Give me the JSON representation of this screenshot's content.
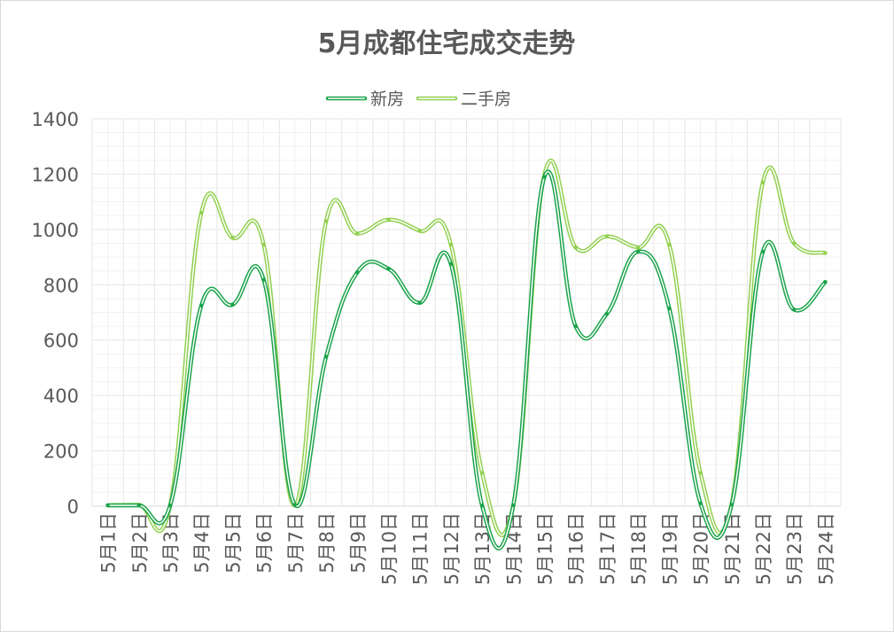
{
  "chart_data": {
    "type": "line",
    "title": "5月成都住宅成交走势",
    "xlabel": "",
    "ylabel": "",
    "ylim": [
      0,
      1400
    ],
    "yticks": [
      0,
      200,
      400,
      600,
      800,
      1000,
      1200,
      1400
    ],
    "grid": true,
    "legend_position": "top-center",
    "categories": [
      "5月1日",
      "5月2日",
      "5月3日",
      "5月4日",
      "5月5日",
      "5月6日",
      "5月7日",
      "5月8日",
      "5月9日",
      "5月10日",
      "5月11日",
      "5月12日",
      "5月13日",
      "5月14日",
      "5月15日",
      "5月16日",
      "5月17日",
      "5月18日",
      "5月19日",
      "5月20日",
      "5月21日",
      "5月22日",
      "5月23日",
      "5月24日"
    ],
    "series": [
      {
        "name": "新房",
        "color": "#1aa34a",
        "values": [
          3,
          3,
          2,
          725,
          728,
          818,
          5,
          540,
          845,
          858,
          735,
          875,
          2,
          3,
          1190,
          650,
          695,
          920,
          715,
          10,
          5,
          920,
          710,
          810
        ]
      },
      {
        "name": "二手房",
        "color": "#92d050",
        "values": [
          3,
          5,
          3,
          1060,
          970,
          945,
          3,
          1030,
          985,
          1035,
          995,
          945,
          120,
          3,
          1200,
          935,
          975,
          935,
          945,
          120,
          10,
          1170,
          950,
          915
        ]
      }
    ]
  }
}
